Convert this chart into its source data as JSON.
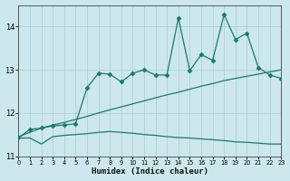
{
  "xlabel": "Humidex (Indice chaleur)",
  "bg_color": "#cce8ec",
  "grid_color": "#aaccd0",
  "line_color": "#1a7a6a",
  "xlim": [
    0,
    23
  ],
  "ylim": [
    11.0,
    14.5
  ],
  "yticks": [
    11,
    12,
    13,
    14
  ],
  "xticks": [
    0,
    1,
    2,
    3,
    4,
    5,
    6,
    7,
    8,
    9,
    10,
    11,
    12,
    13,
    14,
    15,
    16,
    17,
    18,
    19,
    20,
    21,
    22,
    23
  ],
  "line1_x": [
    0,
    1,
    2,
    3,
    4,
    5,
    6,
    7,
    8,
    9,
    10,
    11,
    12,
    13,
    14,
    15,
    16,
    17,
    18,
    19,
    20,
    21,
    22,
    23
  ],
  "line1_y": [
    11.45,
    11.55,
    11.65,
    11.72,
    11.78,
    11.85,
    11.92,
    12.0,
    12.07,
    12.14,
    12.21,
    12.28,
    12.35,
    12.42,
    12.48,
    12.55,
    12.62,
    12.68,
    12.75,
    12.8,
    12.85,
    12.9,
    12.95,
    13.0
  ],
  "line2_x": [
    0,
    1,
    2,
    3,
    4,
    5,
    6,
    7,
    8,
    9,
    10,
    11,
    12,
    13,
    14,
    15,
    16,
    17,
    18,
    19,
    20,
    21,
    22,
    23
  ],
  "line2_y": [
    11.42,
    11.42,
    11.28,
    11.45,
    11.48,
    11.5,
    11.52,
    11.55,
    11.57,
    11.55,
    11.53,
    11.5,
    11.48,
    11.45,
    11.43,
    11.42,
    11.4,
    11.38,
    11.36,
    11.33,
    11.32,
    11.3,
    11.28,
    11.28
  ],
  "line3_x": [
    0,
    1,
    2,
    3,
    4,
    5,
    6,
    7,
    8,
    9,
    10,
    11,
    12,
    13,
    14,
    15,
    16,
    17,
    18,
    19,
    20,
    21,
    22,
    23
  ],
  "line3_y": [
    11.42,
    11.62,
    11.65,
    11.7,
    11.72,
    11.75,
    12.58,
    12.92,
    12.9,
    12.72,
    12.92,
    13.0,
    12.88,
    12.88,
    14.2,
    12.98,
    13.35,
    13.22,
    14.28,
    13.7,
    13.85,
    13.05,
    12.88,
    12.8
  ],
  "marker": "D",
  "markersize": 2.5,
  "lw": 0.9
}
